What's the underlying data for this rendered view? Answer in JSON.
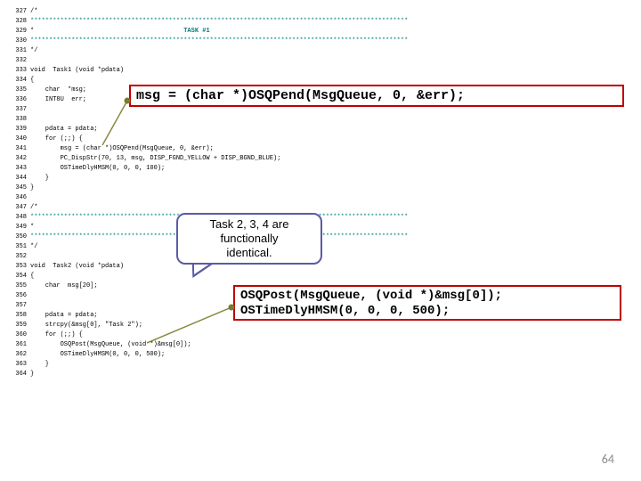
{
  "code": {
    "lines": [
      {
        "n": "327",
        "t": "/*",
        "cls": ""
      },
      {
        "n": "328",
        "t": "*****************************************************************************************************",
        "cls": "stars"
      },
      {
        "n": "329",
        "t": "*                                        ",
        "label": "TASK #1",
        "cls": ""
      },
      {
        "n": "330",
        "t": "*****************************************************************************************************",
        "cls": "stars"
      },
      {
        "n": "331",
        "t": "*/",
        "cls": ""
      },
      {
        "n": "332",
        "t": "",
        "cls": ""
      },
      {
        "n": "333",
        "t": "void  Task1 (void *pdata)",
        "cls": ""
      },
      {
        "n": "334",
        "t": "{",
        "cls": ""
      },
      {
        "n": "335",
        "t": "    char  *msg;",
        "cls": ""
      },
      {
        "n": "336",
        "t": "    INT8U  err;",
        "cls": ""
      },
      {
        "n": "337",
        "t": "",
        "cls": ""
      },
      {
        "n": "338",
        "t": "",
        "cls": ""
      },
      {
        "n": "339",
        "t": "    pdata = pdata;",
        "cls": ""
      },
      {
        "n": "340",
        "t": "    for (;;) {",
        "cls": ""
      },
      {
        "n": "341",
        "t": "        msg = (char *)OSQPend(MsgQueue, 0, &err);",
        "cls": ""
      },
      {
        "n": "342",
        "t": "        PC_DispStr(70, 13, msg, DISP_FGND_YELLOW + DISP_BGND_BLUE);",
        "cls": ""
      },
      {
        "n": "343",
        "t": "        OSTimeDlyHMSM(0, 0, 0, 100);",
        "cls": ""
      },
      {
        "n": "344",
        "t": "    }",
        "cls": ""
      },
      {
        "n": "345",
        "t": "}",
        "cls": ""
      },
      {
        "n": "346",
        "t": "",
        "cls": ""
      },
      {
        "n": "347",
        "t": "/*",
        "cls": ""
      },
      {
        "n": "348",
        "t": "*****************************************************************************************************",
        "cls": "stars"
      },
      {
        "n": "349",
        "t": "*",
        "cls": ""
      },
      {
        "n": "350",
        "t": "*****************************************************************************************************",
        "cls": "stars"
      },
      {
        "n": "351",
        "t": "*/",
        "cls": ""
      },
      {
        "n": "352",
        "t": "",
        "cls": ""
      },
      {
        "n": "353",
        "t": "void  Task2 (void *pdata)",
        "cls": ""
      },
      {
        "n": "354",
        "t": "{",
        "cls": ""
      },
      {
        "n": "355",
        "t": "    char  msg[20];",
        "cls": ""
      },
      {
        "n": "356",
        "t": "",
        "cls": ""
      },
      {
        "n": "357",
        "t": "",
        "cls": ""
      },
      {
        "n": "358",
        "t": "    pdata = pdata;",
        "cls": ""
      },
      {
        "n": "359",
        "t": "    strcpy(&msg[0], \"Task 2\");",
        "cls": ""
      },
      {
        "n": "360",
        "t": "    for (;;) {",
        "cls": ""
      },
      {
        "n": "361",
        "t": "        OSQPost(MsgQueue, (void *)&msg[0]);",
        "cls": ""
      },
      {
        "n": "362",
        "t": "        OSTimeDlyHMSM(0, 0, 0, 500);",
        "cls": ""
      },
      {
        "n": "363",
        "t": "    }",
        "cls": ""
      },
      {
        "n": "364",
        "t": "}",
        "cls": ""
      }
    ]
  },
  "highlight1": "msg = (char *)OSQPend(MsgQueue, 0, &err);",
  "highlight2_line1": "OSQPost(MsgQueue, (void *)&msg[0]);",
  "highlight2_line2": "OSTimeDlyHMSM(0, 0, 0, 500);",
  "callout_l1": "Task 2, 3, 4 are",
  "callout_l2": "functionally",
  "callout_l3": "identical.",
  "page_number": "64",
  "colors": {
    "box_border": "#c00000",
    "bubble_border": "#5b5ba5",
    "teal": "#008080",
    "dot": "#7a7a30",
    "page_num": "#8a8a8a"
  }
}
